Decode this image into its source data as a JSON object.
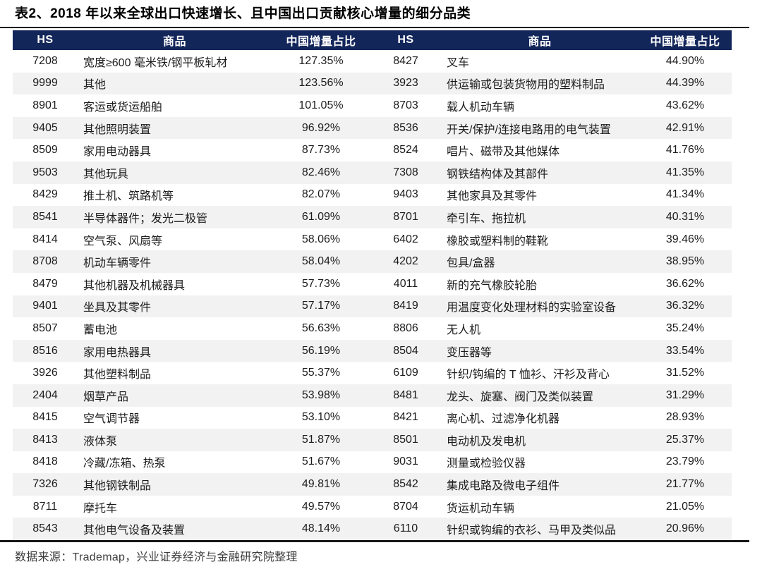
{
  "title": "表2、2018 年以来全球出口快速增长、且中国出口贡献核心增量的细分品类",
  "columns": [
    "HS",
    "商品",
    "中国增量占比",
    "HS",
    "商品",
    "中国增量占比"
  ],
  "left_rows": [
    {
      "hs": "7208",
      "name": "宽度≥600 毫米铁/钢平板轧材",
      "share": "127.35%"
    },
    {
      "hs": "9999",
      "name": "其他",
      "share": "123.56%"
    },
    {
      "hs": "8901",
      "name": "客运或货运船舶",
      "share": "101.05%"
    },
    {
      "hs": "9405",
      "name": "其他照明装置",
      "share": "96.92%"
    },
    {
      "hs": "8509",
      "name": "家用电动器具",
      "share": "87.73%"
    },
    {
      "hs": "9503",
      "name": "其他玩具",
      "share": "82.46%"
    },
    {
      "hs": "8429",
      "name": "推土机、筑路机等",
      "share": "82.07%"
    },
    {
      "hs": "8541",
      "name": "半导体器件；发光二极管",
      "share": "61.09%"
    },
    {
      "hs": "8414",
      "name": "空气泵、风扇等",
      "share": "58.06%"
    },
    {
      "hs": "8708",
      "name": "机动车辆零件",
      "share": "58.04%"
    },
    {
      "hs": "8479",
      "name": "其他机器及机械器具",
      "share": "57.73%"
    },
    {
      "hs": "9401",
      "name": "坐具及其零件",
      "share": "57.17%"
    },
    {
      "hs": "8507",
      "name": "蓄电池",
      "share": "56.63%"
    },
    {
      "hs": "8516",
      "name": "家用电热器具",
      "share": "56.19%"
    },
    {
      "hs": "3926",
      "name": "其他塑料制品",
      "share": "55.37%"
    },
    {
      "hs": "2404",
      "name": "烟草产品",
      "share": "53.98%"
    },
    {
      "hs": "8415",
      "name": "空气调节器",
      "share": "53.10%"
    },
    {
      "hs": "8413",
      "name": "液体泵",
      "share": "51.87%"
    },
    {
      "hs": "8418",
      "name": "冷藏/冻箱、热泵",
      "share": "51.67%"
    },
    {
      "hs": "7326",
      "name": "其他钢铁制品",
      "share": "49.81%"
    },
    {
      "hs": "8711",
      "name": "摩托车",
      "share": "49.57%"
    },
    {
      "hs": "8543",
      "name": "其他电气设备及装置",
      "share": "48.14%"
    }
  ],
  "right_rows": [
    {
      "hs": "8427",
      "name": "叉车",
      "share": "44.90%"
    },
    {
      "hs": "3923",
      "name": "供运输或包装货物用的塑料制品",
      "share": "44.39%"
    },
    {
      "hs": "8703",
      "name": "载人机动车辆",
      "share": "43.62%"
    },
    {
      "hs": "8536",
      "name": "开关/保护/连接电路用的电气装置",
      "share": "42.91%"
    },
    {
      "hs": "8524",
      "name": "唱片、磁带及其他媒体",
      "share": "41.76%"
    },
    {
      "hs": "7308",
      "name": "钢铁结构体及其部件",
      "share": "41.35%"
    },
    {
      "hs": "9403",
      "name": "其他家具及其零件",
      "share": "41.34%"
    },
    {
      "hs": "8701",
      "name": "牵引车、拖拉机",
      "share": "40.31%"
    },
    {
      "hs": "6402",
      "name": "橡胶或塑料制的鞋靴",
      "share": "39.46%"
    },
    {
      "hs": "4202",
      "name": "包具/盒器",
      "share": "38.95%"
    },
    {
      "hs": "4011",
      "name": "新的充气橡胶轮胎",
      "share": "36.62%"
    },
    {
      "hs": "8419",
      "name": "用温度变化处理材料的实验室设备",
      "share": "36.32%"
    },
    {
      "hs": "8806",
      "name": "无人机",
      "share": "35.24%"
    },
    {
      "hs": "8504",
      "name": "变压器等",
      "share": "33.54%"
    },
    {
      "hs": "6109",
      "name": "针织/钩编的 T 恤衫、汗衫及背心",
      "share": "31.52%"
    },
    {
      "hs": "8481",
      "name": "龙头、旋塞、阀门及类似装置",
      "share": "31.29%"
    },
    {
      "hs": "8421",
      "name": "离心机、过滤净化机器",
      "share": "28.93%"
    },
    {
      "hs": "8501",
      "name": "电动机及发电机",
      "share": "25.37%"
    },
    {
      "hs": "9031",
      "name": "测量或检验仪器",
      "share": "23.79%"
    },
    {
      "hs": "8542",
      "name": "集成电路及微电子组件",
      "share": "21.77%"
    },
    {
      "hs": "8704",
      "name": "货运机动车辆",
      "share": "21.05%"
    },
    {
      "hs": "6110",
      "name": "针织或钩编的衣衫、马甲及类似品",
      "share": "20.96%"
    }
  ],
  "footer": {
    "text": "数据来源：Trademap，兴业证券经济与金融研究院整理"
  },
  "colors": {
    "header_bg": "#13265A",
    "header_text": "#FFFFFF",
    "alt_row_bg": "#F2F2F2",
    "rule": "#161616",
    "body_text": "#1C1C1C"
  }
}
